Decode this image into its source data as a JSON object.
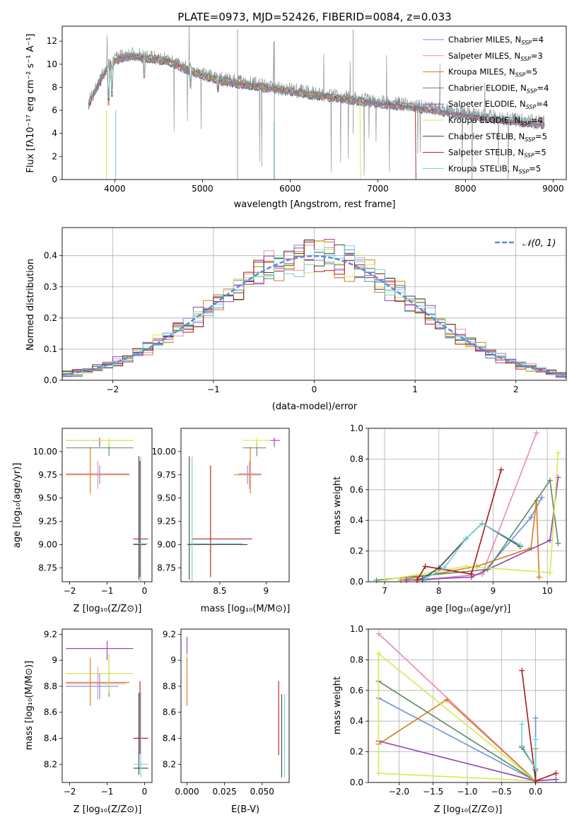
{
  "colors": {
    "chab_miles": "#6a8fd8",
    "salp_miles": "#e58abf",
    "krou_miles": "#d97a20",
    "chab_elodie": "#5a8a60",
    "salp_elodie": "#9a3fb0",
    "krou_elodie": "#d4ea50",
    "chab_stelib": "#404040",
    "salp_stelib": "#b01818",
    "krou_stelib": "#70cfd8",
    "data_spectrum": "#888888",
    "normal": "#5b8bd8"
  },
  "chart_data": [
    {
      "id": "spectrum",
      "type": "line",
      "title": "PLATE=0973, MJD=52426, FIBERID=0084, z=0.033",
      "xlabel": "wavelength [Angstrom, rest frame]",
      "ylabel": "Flux [fλ10⁻¹⁷ erg cm⁻² s⁻¹ A⁻¹]",
      "xlim": [
        3400,
        9150
      ],
      "ylim": [
        0,
        13.3
      ],
      "xticks": [
        4000,
        5000,
        6000,
        7000,
        8000,
        9000
      ],
      "yticks": [
        0,
        2,
        4,
        6,
        8,
        10,
        12
      ],
      "legend": [
        "Chabrier MILES, N_SSP=4",
        "Salpeter MILES, N_SSP=3",
        "Kroupa MILES, N_SSP=5",
        "Chabrier ELODIE, N_SSP=4",
        "Salpeter ELODIE, N_SSP=4",
        "Kroupa ELODIE, N_SSP=4",
        "Chabrier STELIB, N_SSP=5",
        "Salpeter STELIB, N_SSP=5",
        "Kroupa STELIB, N_SSP=5"
      ],
      "legend_position": "top-right",
      "continuum": [
        [
          3700,
          6.5
        ],
        [
          3800,
          8.0
        ],
        [
          3900,
          9.5
        ],
        [
          4000,
          10.3
        ],
        [
          4100,
          10.6
        ],
        [
          4200,
          10.7
        ],
        [
          4400,
          10.5
        ],
        [
          4600,
          10.3
        ],
        [
          4800,
          9.6
        ],
        [
          5000,
          9.0
        ],
        [
          5200,
          8.6
        ],
        [
          5500,
          8.2
        ],
        [
          5800,
          7.9
        ],
        [
          6200,
          7.4
        ],
        [
          6600,
          7.0
        ],
        [
          7000,
          6.6
        ],
        [
          7400,
          6.3
        ],
        [
          7800,
          5.8
        ],
        [
          8200,
          5.4
        ],
        [
          8600,
          5.0
        ],
        [
          8900,
          4.8
        ]
      ]
    },
    {
      "id": "residuals",
      "type": "histogram",
      "xlabel": "(data-model)/error",
      "ylabel": "Normed distribution",
      "xlim": [
        -2.5,
        2.5
      ],
      "ylim": [
        0,
        0.49
      ],
      "xticks": [
        -2,
        -1,
        0,
        1,
        2
      ],
      "yticks": [
        0.0,
        0.1,
        0.2,
        0.3,
        0.4
      ],
      "grid": true,
      "legend": [
        "𝒩(0, 1)"
      ],
      "legend_position": "top-right"
    },
    {
      "id": "age-z",
      "type": "scatter",
      "xlabel": "Z [log₁₀(Z/Z⊙)]",
      "ylabel": "age  [log₁₀(age/yr)]",
      "xlim": [
        -2.2,
        0.2
      ],
      "ylim": [
        8.6,
        10.25
      ],
      "xticks": [
        -2,
        -1,
        0
      ],
      "yticks": [
        8.75,
        9.0,
        9.25,
        9.5,
        9.75,
        10.0
      ],
      "yticklabels": [
        "8.75",
        "9.00",
        "9.25",
        "9.50",
        "9.75",
        "10.00"
      ],
      "points": [
        {
          "s": "chab_miles",
          "x": -1.2,
          "y": 9.76,
          "xl": -2.1,
          "xh": -0.5,
          "yl": 9.65,
          "yh": 9.85
        },
        {
          "s": "salp_miles",
          "x": -1.25,
          "y": 9.76,
          "xl": -2.1,
          "xh": -0.4,
          "yl": 9.6,
          "yh": 9.9
        },
        {
          "s": "krou_miles",
          "x": -1.45,
          "y": 9.75,
          "xl": -2.1,
          "xh": -0.4,
          "yl": 9.55,
          "yh": 10.05
        },
        {
          "s": "chab_elodie",
          "x": -0.95,
          "y": 10.04,
          "xl": -2.1,
          "xh": -0.3,
          "yl": 9.95,
          "yh": 10.12
        },
        {
          "s": "salp_elodie",
          "x": -1.2,
          "y": 10.12,
          "xl": -2.1,
          "xh": -0.3,
          "yl": 10.05,
          "yh": 10.15
        },
        {
          "s": "krou_elodie",
          "x": -0.95,
          "y": 10.12,
          "xl": -2.1,
          "xh": -0.3,
          "yl": 10.05,
          "yh": 10.15
        },
        {
          "s": "chab_stelib",
          "x": -0.15,
          "y": 9.0,
          "xl": -0.3,
          "xh": 0.05,
          "yl": 8.62,
          "yh": 9.95
        },
        {
          "s": "salp_stelib",
          "x": -0.12,
          "y": 9.06,
          "xl": -0.3,
          "xh": 0.1,
          "yl": 8.65,
          "yh": 9.9
        },
        {
          "s": "krou_stelib",
          "x": -0.1,
          "y": 9.01,
          "xl": -0.3,
          "xh": 0.1,
          "yl": 8.6,
          "yh": 9.95
        }
      ]
    },
    {
      "id": "age-mass",
      "type": "scatter",
      "xlabel": "mass [log₁₀(M/M⊙)]",
      "ylabel": "",
      "xlim": [
        8.08,
        9.25
      ],
      "ylim": [
        8.6,
        10.25
      ],
      "xticks": [
        8.5,
        9.0
      ],
      "yticks": [
        8.75,
        9.0,
        9.25,
        9.5,
        9.75,
        10.0
      ],
      "yticklabels": [
        "8.75",
        "9.00",
        "9.25",
        "9.50",
        "9.75",
        "10.00"
      ],
      "points": [
        {
          "s": "chab_miles",
          "x": 8.8,
          "y": 9.76,
          "xl": 8.7,
          "xh": 8.9,
          "yl": 9.65,
          "yh": 9.85
        },
        {
          "s": "salp_miles",
          "x": 8.82,
          "y": 9.76,
          "xl": 8.7,
          "xh": 8.95,
          "yl": 9.6,
          "yh": 9.9
        },
        {
          "s": "krou_miles",
          "x": 8.83,
          "y": 9.75,
          "xl": 8.65,
          "xh": 8.95,
          "yl": 9.55,
          "yh": 10.05
        },
        {
          "s": "chab_elodie",
          "x": 8.9,
          "y": 10.04,
          "xl": 8.75,
          "xh": 9.0,
          "yl": 9.95,
          "yh": 10.12
        },
        {
          "s": "salp_elodie",
          "x": 9.09,
          "y": 10.12,
          "xl": 9.0,
          "xh": 9.15,
          "yl": 10.05,
          "yh": 10.15
        },
        {
          "s": "krou_elodie",
          "x": 8.9,
          "y": 10.12,
          "xl": 8.75,
          "xh": 9.05,
          "yl": 10.05,
          "yh": 10.15
        },
        {
          "s": "chab_stelib",
          "x": 8.17,
          "y": 9.0,
          "xl": 8.15,
          "xh": 8.8,
          "yl": 8.62,
          "yh": 9.95
        },
        {
          "s": "salp_stelib",
          "x": 8.4,
          "y": 9.06,
          "xl": 8.2,
          "xh": 8.85,
          "yl": 8.65,
          "yh": 9.85
        },
        {
          "s": "krou_stelib",
          "x": 8.2,
          "y": 9.01,
          "xl": 8.15,
          "xh": 8.75,
          "yl": 8.6,
          "yh": 9.95
        }
      ]
    },
    {
      "id": "mw-age",
      "type": "line",
      "xlabel": "age  [log₁₀(age/yr)]",
      "ylabel": "mass weight",
      "xlim": [
        6.7,
        10.35
      ],
      "ylim": [
        0,
        1.0
      ],
      "xticks": [
        7,
        8,
        9,
        10
      ],
      "yticks": [
        0.0,
        0.2,
        0.4,
        0.6,
        0.8,
        1.0
      ],
      "grid": true,
      "series": [
        {
          "s": "chab_miles",
          "x": [
            7.7,
            8.8,
            9.7,
            9.9
          ],
          "y": [
            0.01,
            0.05,
            0.42,
            0.55
          ]
        },
        {
          "s": "salp_miles",
          "x": [
            7.6,
            8.8,
            9.8
          ],
          "y": [
            0.01,
            0.05,
            0.97
          ]
        },
        {
          "s": "krou_miles",
          "x": [
            7.3,
            8.7,
            9.7,
            9.8,
            9.85
          ],
          "y": [
            0.01,
            0.1,
            0.22,
            0.53,
            0.03
          ]
        },
        {
          "s": "chab_elodie",
          "x": [
            6.85,
            8.9,
            10.05,
            10.2
          ],
          "y": [
            0.01,
            0.08,
            0.66,
            0.25
          ]
        },
        {
          "s": "salp_elodie",
          "x": [
            7.4,
            8.6,
            10.05,
            10.2
          ],
          "y": [
            0.01,
            0.03,
            0.27,
            0.68
          ]
        },
        {
          "s": "krou_elodie",
          "x": [
            7.0,
            8.5,
            10.05,
            10.2
          ],
          "y": [
            0.01,
            0.1,
            0.06,
            0.84
          ]
        },
        {
          "s": "chab_stelib",
          "x": [
            7.7,
            8.0,
            8.5,
            8.8,
            9.5
          ],
          "y": [
            0.02,
            0.09,
            0.28,
            0.38,
            0.23
          ]
        },
        {
          "s": "salp_stelib",
          "x": [
            7.6,
            7.75,
            8.6,
            9.15
          ],
          "y": [
            0.01,
            0.1,
            0.05,
            0.73
          ]
        },
        {
          "s": "krou_stelib",
          "x": [
            7.75,
            8.1,
            8.5,
            8.8,
            9.5
          ],
          "y": [
            0.02,
            0.09,
            0.28,
            0.38,
            0.24
          ]
        }
      ]
    },
    {
      "id": "mass-z",
      "type": "scatter",
      "xlabel": "Z [log₁₀(Z/Z⊙)]",
      "ylabel": "mass [log₁₀(M/M⊙)]",
      "xlim": [
        -2.2,
        0.2
      ],
      "ylim": [
        8.06,
        9.24
      ],
      "xticks": [
        -2,
        -1,
        0
      ],
      "yticks": [
        8.2,
        8.4,
        8.6,
        8.8,
        9.0,
        9.2
      ],
      "points": [
        {
          "s": "chab_miles",
          "x": -1.2,
          "y": 8.8,
          "xl": -2.1,
          "xh": -0.7,
          "yl": 8.7,
          "yh": 8.9
        },
        {
          "s": "salp_miles",
          "x": -1.25,
          "y": 8.82,
          "xl": -2.1,
          "xh": -0.5,
          "yl": 8.7,
          "yh": 8.95
        },
        {
          "s": "krou_miles",
          "x": -1.45,
          "y": 8.83,
          "xl": -2.1,
          "xh": -0.4,
          "yl": 8.65,
          "yh": 9.02
        },
        {
          "s": "chab_elodie",
          "x": -0.95,
          "y": 8.9,
          "xl": -2.1,
          "xh": -0.3,
          "yl": 8.72,
          "yh": 9.05
        },
        {
          "s": "salp_elodie",
          "x": -1.0,
          "y": 9.09,
          "xl": -2.1,
          "xh": -0.3,
          "yl": 9.0,
          "yh": 9.15
        },
        {
          "s": "krou_elodie",
          "x": -0.95,
          "y": 8.9,
          "xl": -2.1,
          "xh": -0.3,
          "yl": 8.75,
          "yh": 9.05
        },
        {
          "s": "chab_stelib",
          "x": -0.15,
          "y": 8.17,
          "xl": -0.3,
          "xh": 0.1,
          "yl": 8.12,
          "yh": 8.75
        },
        {
          "s": "salp_stelib",
          "x": -0.12,
          "y": 8.4,
          "xl": -0.3,
          "xh": 0.1,
          "yl": 8.28,
          "yh": 8.84
        },
        {
          "s": "krou_stelib",
          "x": -0.1,
          "y": 8.2,
          "xl": -0.3,
          "xh": 0.1,
          "yl": 8.1,
          "yh": 8.75
        }
      ]
    },
    {
      "id": "mass-ebv",
      "type": "scatter",
      "xlabel": "E(B-V)",
      "ylabel": "",
      "xlim": [
        -0.004,
        0.068
      ],
      "ylim": [
        8.06,
        9.24
      ],
      "xticks": [
        0.0,
        0.025,
        0.05
      ],
      "xticklabels": [
        "0.000",
        "0.025",
        "0.050"
      ],
      "yticks": [
        8.2,
        8.4,
        8.6,
        8.8,
        9.0,
        9.2
      ],
      "points": [
        {
          "s": "salp_elodie",
          "x": 0.0,
          "y": 9.09,
          "xl": 0.0,
          "xh": 0.0,
          "yl": 9.0,
          "yh": 9.18
        },
        {
          "s": "krou_elodie",
          "x": 0.0,
          "y": 8.9,
          "xl": 0.0,
          "xh": 0.0,
          "yl": 8.7,
          "yh": 9.05
        },
        {
          "s": "krou_miles",
          "x": 0.0,
          "y": 8.83,
          "xl": 0.0,
          "xh": 0.0,
          "yl": 8.65,
          "yh": 9.02
        },
        {
          "s": "salp_stelib",
          "x": 0.061,
          "y": 8.4,
          "xl": 0.061,
          "xh": 0.061,
          "yl": 8.27,
          "yh": 8.84
        },
        {
          "s": "chab_stelib",
          "x": 0.063,
          "y": 8.17,
          "xl": 0.063,
          "xh": 0.063,
          "yl": 8.1,
          "yh": 8.74
        },
        {
          "s": "krou_stelib",
          "x": 0.065,
          "y": 8.2,
          "xl": 0.065,
          "xh": 0.065,
          "yl": 8.1,
          "yh": 8.74
        }
      ]
    },
    {
      "id": "mw-z",
      "type": "line",
      "xlabel": "Z [log₁₀(Z/Z⊙)]",
      "ylabel": "mass weight",
      "xlim": [
        -2.45,
        0.45
      ],
      "ylim": [
        0,
        1.0
      ],
      "xticks": [
        -2.0,
        -1.5,
        -1.0,
        -0.5,
        0.0
      ],
      "xticklabels": [
        "−2.0",
        "−1.5",
        "−1.0",
        "−0.5",
        "0.0"
      ],
      "yticks": [
        0.0,
        0.2,
        0.4,
        0.6,
        0.8,
        1.0
      ],
      "grid": true,
      "series": [
        {
          "s": "chab_miles",
          "x": [
            -2.3,
            0.0,
            0.0
          ],
          "y": [
            0.55,
            0.01,
            0.42
          ]
        },
        {
          "s": "salp_miles",
          "x": [
            -2.3,
            0.0,
            0.3
          ],
          "y": [
            0.97,
            0.01,
            0.02
          ]
        },
        {
          "s": "krou_miles",
          "x": [
            -2.3,
            -1.3,
            0.0,
            0.0
          ],
          "y": [
            0.25,
            0.54,
            0.01,
            0.22
          ]
        },
        {
          "s": "chab_elodie",
          "x": [
            -2.3,
            0.0,
            0.0
          ],
          "y": [
            0.66,
            0.01,
            0.08
          ]
        },
        {
          "s": "salp_elodie",
          "x": [
            -2.3,
            0.0,
            0.3
          ],
          "y": [
            0.27,
            0.01,
            0.02
          ]
        },
        {
          "s": "krou_elodie",
          "x": [
            -2.3,
            -2.3,
            0.0,
            -2.3
          ],
          "y": [
            0.84,
            0.06,
            0.01,
            0.84
          ]
        },
        {
          "s": "chab_stelib",
          "x": [
            -0.2,
            0.0,
            0.0
          ],
          "y": [
            0.23,
            0.09,
            0.01
          ]
        },
        {
          "s": "salp_stelib",
          "x": [
            -0.2,
            0.0,
            0.3
          ],
          "y": [
            0.73,
            0.01,
            0.06
          ]
        },
        {
          "s": "krou_stelib",
          "x": [
            -0.2,
            -0.2,
            0.0,
            0.0
          ],
          "y": [
            0.38,
            0.24,
            0.09,
            0.28
          ]
        }
      ]
    }
  ]
}
